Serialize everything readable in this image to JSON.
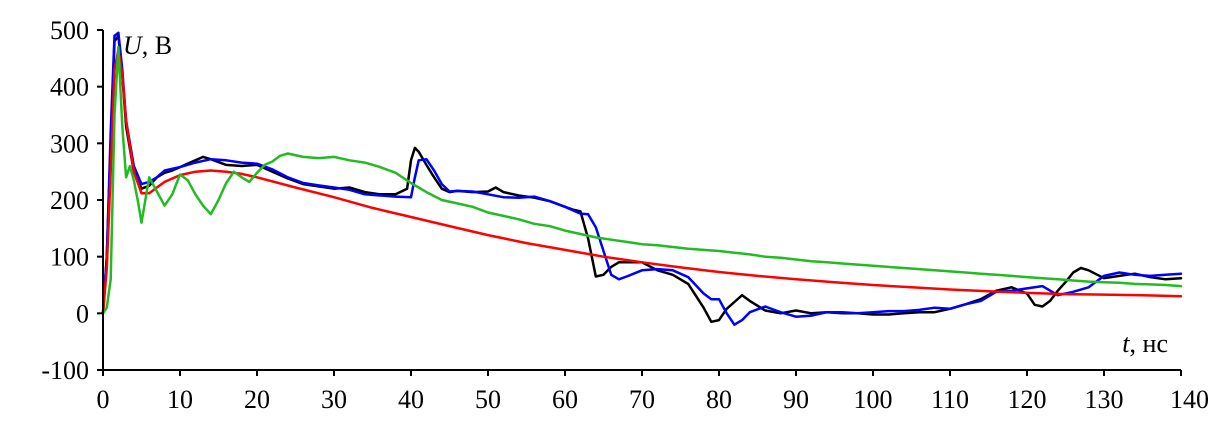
{
  "chart_data": {
    "type": "line",
    "xlabel": {
      "var": "t",
      "unit": ", нс"
    },
    "ylabel": {
      "var": "U",
      "unit": ", В"
    },
    "xlim": [
      0,
      140
    ],
    "ylim": [
      -100,
      500
    ],
    "x_ticks": [
      0,
      10,
      20,
      30,
      40,
      50,
      60,
      70,
      80,
      90,
      100,
      110,
      120,
      130,
      140
    ],
    "y_ticks": [
      -100,
      0,
      100,
      200,
      300,
      400,
      500
    ],
    "x_tick_labels": [
      "0",
      "10",
      "20",
      "30",
      "40",
      "50",
      "60",
      "70",
      "80",
      "90",
      "100",
      "110",
      "120",
      "130",
      "140"
    ],
    "y_tick_labels": [
      "-100",
      "0",
      "100",
      "200",
      "300",
      "400",
      "500"
    ],
    "grid": false,
    "series": [
      {
        "color": "#000000",
        "points": [
          [
            0,
            0
          ],
          [
            0.5,
            100
          ],
          [
            1,
            300
          ],
          [
            1.5,
            480
          ],
          [
            2,
            490
          ],
          [
            2.5,
            420
          ],
          [
            3,
            330
          ],
          [
            4,
            250
          ],
          [
            5,
            220
          ],
          [
            6,
            225
          ],
          [
            7,
            240
          ],
          [
            8,
            248
          ],
          [
            9,
            252
          ],
          [
            10,
            258
          ],
          [
            11,
            264
          ],
          [
            12,
            270
          ],
          [
            13,
            276
          ],
          [
            14,
            272
          ],
          [
            16,
            262
          ],
          [
            18,
            260
          ],
          [
            20,
            262
          ],
          [
            22,
            250
          ],
          [
            24,
            238
          ],
          [
            26,
            228
          ],
          [
            28,
            224
          ],
          [
            30,
            220
          ],
          [
            32,
            222
          ],
          [
            34,
            214
          ],
          [
            36,
            210
          ],
          [
            38,
            210
          ],
          [
            39.5,
            220
          ],
          [
            40,
            270
          ],
          [
            40.5,
            292
          ],
          [
            41,
            285
          ],
          [
            42,
            262
          ],
          [
            43,
            240
          ],
          [
            44,
            220
          ],
          [
            45,
            214
          ],
          [
            46,
            216
          ],
          [
            48,
            214
          ],
          [
            50,
            215
          ],
          [
            51,
            222
          ],
          [
            52,
            214
          ],
          [
            54,
            208
          ],
          [
            56,
            204
          ],
          [
            58,
            198
          ],
          [
            60,
            188
          ],
          [
            61,
            183
          ],
          [
            62,
            180
          ],
          [
            63,
            132
          ],
          [
            64,
            65
          ],
          [
            65,
            68
          ],
          [
            66,
            82
          ],
          [
            67,
            90
          ],
          [
            68,
            90
          ],
          [
            70,
            90
          ],
          [
            72,
            76
          ],
          [
            74,
            68
          ],
          [
            76,
            52
          ],
          [
            78,
            10
          ],
          [
            79,
            -15
          ],
          [
            80,
            -12
          ],
          [
            81,
            8
          ],
          [
            82,
            20
          ],
          [
            83,
            32
          ],
          [
            84,
            22
          ],
          [
            86,
            5
          ],
          [
            88,
            0
          ],
          [
            90,
            5
          ],
          [
            92,
            0
          ],
          [
            94,
            2
          ],
          [
            96,
            0
          ],
          [
            98,
            0
          ],
          [
            100,
            -2
          ],
          [
            102,
            -2
          ],
          [
            104,
            0
          ],
          [
            106,
            2
          ],
          [
            108,
            2
          ],
          [
            110,
            8
          ],
          [
            112,
            16
          ],
          [
            114,
            25
          ],
          [
            116,
            40
          ],
          [
            118,
            46
          ],
          [
            120,
            35
          ],
          [
            121,
            15
          ],
          [
            122,
            12
          ],
          [
            123,
            22
          ],
          [
            124,
            40
          ],
          [
            125,
            55
          ],
          [
            126,
            72
          ],
          [
            127,
            80
          ],
          [
            128,
            76
          ],
          [
            130,
            62
          ],
          [
            132,
            66
          ],
          [
            134,
            70
          ],
          [
            136,
            64
          ],
          [
            138,
            60
          ],
          [
            140,
            62
          ]
        ]
      },
      {
        "color": "#0000ff",
        "points": [
          [
            0,
            0
          ],
          [
            0.5,
            100
          ],
          [
            1,
            320
          ],
          [
            1.5,
            490
          ],
          [
            2,
            495
          ],
          [
            2.5,
            430
          ],
          [
            3,
            340
          ],
          [
            4,
            260
          ],
          [
            5,
            228
          ],
          [
            6,
            232
          ],
          [
            7,
            240
          ],
          [
            8,
            252
          ],
          [
            10,
            258
          ],
          [
            12,
            266
          ],
          [
            14,
            272
          ],
          [
            16,
            270
          ],
          [
            18,
            266
          ],
          [
            20,
            264
          ],
          [
            22,
            254
          ],
          [
            24,
            240
          ],
          [
            26,
            230
          ],
          [
            28,
            226
          ],
          [
            30,
            222
          ],
          [
            32,
            218
          ],
          [
            34,
            210
          ],
          [
            36,
            208
          ],
          [
            38,
            206
          ],
          [
            40,
            205
          ],
          [
            40.5,
            240
          ],
          [
            41,
            270
          ],
          [
            42,
            272
          ],
          [
            43,
            252
          ],
          [
            44,
            228
          ],
          [
            45,
            215
          ],
          [
            46,
            216
          ],
          [
            48,
            215
          ],
          [
            50,
            210
          ],
          [
            52,
            205
          ],
          [
            54,
            204
          ],
          [
            56,
            206
          ],
          [
            58,
            198
          ],
          [
            60,
            188
          ],
          [
            62,
            176
          ],
          [
            63,
            175
          ],
          [
            64,
            152
          ],
          [
            65,
            110
          ],
          [
            66,
            68
          ],
          [
            67,
            60
          ],
          [
            68,
            65
          ],
          [
            70,
            76
          ],
          [
            72,
            78
          ],
          [
            74,
            76
          ],
          [
            76,
            64
          ],
          [
            78,
            35
          ],
          [
            79,
            25
          ],
          [
            80,
            25
          ],
          [
            81,
            0
          ],
          [
            82,
            -20
          ],
          [
            83,
            -12
          ],
          [
            84,
            2
          ],
          [
            86,
            12
          ],
          [
            88,
            2
          ],
          [
            90,
            -6
          ],
          [
            92,
            -4
          ],
          [
            94,
            2
          ],
          [
            96,
            2
          ],
          [
            98,
            0
          ],
          [
            100,
            2
          ],
          [
            102,
            4
          ],
          [
            104,
            4
          ],
          [
            106,
            6
          ],
          [
            108,
            10
          ],
          [
            110,
            8
          ],
          [
            112,
            16
          ],
          [
            114,
            22
          ],
          [
            116,
            38
          ],
          [
            118,
            40
          ],
          [
            120,
            44
          ],
          [
            122,
            48
          ],
          [
            124,
            32
          ],
          [
            126,
            38
          ],
          [
            128,
            46
          ],
          [
            130,
            66
          ],
          [
            132,
            72
          ],
          [
            134,
            68
          ],
          [
            136,
            66
          ],
          [
            138,
            68
          ],
          [
            140,
            70
          ]
        ]
      },
      {
        "color": "#ff0000",
        "points": [
          [
            0,
            0
          ],
          [
            0.5,
            80
          ],
          [
            1,
            250
          ],
          [
            1.5,
            430
          ],
          [
            2,
            465
          ],
          [
            2.5,
            420
          ],
          [
            3,
            340
          ],
          [
            4,
            250
          ],
          [
            5,
            212
          ],
          [
            6,
            212
          ],
          [
            7,
            222
          ],
          [
            8,
            232
          ],
          [
            10,
            244
          ],
          [
            12,
            250
          ],
          [
            14,
            252
          ],
          [
            16,
            250
          ],
          [
            18,
            246
          ],
          [
            20,
            240
          ],
          [
            25,
            222
          ],
          [
            30,
            205
          ],
          [
            35,
            186
          ],
          [
            40,
            170
          ],
          [
            45,
            154
          ],
          [
            50,
            138
          ],
          [
            55,
            124
          ],
          [
            60,
            112
          ],
          [
            65,
            100
          ],
          [
            70,
            90
          ],
          [
            75,
            81
          ],
          [
            80,
            73
          ],
          [
            85,
            66
          ],
          [
            90,
            60
          ],
          [
            95,
            55
          ],
          [
            100,
            50
          ],
          [
            105,
            46
          ],
          [
            110,
            42
          ],
          [
            115,
            39
          ],
          [
            120,
            36
          ],
          [
            125,
            34
          ],
          [
            130,
            33
          ],
          [
            135,
            32
          ],
          [
            140,
            30
          ]
        ]
      },
      {
        "color": "#22bb22",
        "points": [
          [
            0,
            0
          ],
          [
            0.5,
            10
          ],
          [
            1,
            60
          ],
          [
            1.5,
            350
          ],
          [
            2,
            470
          ],
          [
            2.5,
            330
          ],
          [
            3,
            240
          ],
          [
            3.5,
            260
          ],
          [
            4,
            235
          ],
          [
            4.5,
            200
          ],
          [
            5,
            160
          ],
          [
            6,
            240
          ],
          [
            7,
            215
          ],
          [
            8,
            190
          ],
          [
            9,
            210
          ],
          [
            10,
            245
          ],
          [
            11,
            235
          ],
          [
            12,
            210
          ],
          [
            13,
            190
          ],
          [
            14,
            175
          ],
          [
            15,
            200
          ],
          [
            16,
            230
          ],
          [
            17,
            250
          ],
          [
            18,
            240
          ],
          [
            19,
            232
          ],
          [
            20,
            248
          ],
          [
            21,
            262
          ],
          [
            22,
            268
          ],
          [
            23,
            278
          ],
          [
            24,
            282
          ],
          [
            26,
            276
          ],
          [
            28,
            274
          ],
          [
            30,
            276
          ],
          [
            32,
            270
          ],
          [
            34,
            266
          ],
          [
            36,
            258
          ],
          [
            38,
            248
          ],
          [
            40,
            230
          ],
          [
            42,
            214
          ],
          [
            44,
            200
          ],
          [
            46,
            194
          ],
          [
            48,
            188
          ],
          [
            50,
            178
          ],
          [
            52,
            172
          ],
          [
            54,
            166
          ],
          [
            56,
            158
          ],
          [
            58,
            154
          ],
          [
            60,
            146
          ],
          [
            62,
            140
          ],
          [
            64,
            134
          ],
          [
            66,
            130
          ],
          [
            68,
            126
          ],
          [
            70,
            122
          ],
          [
            72,
            120
          ],
          [
            74,
            117
          ],
          [
            76,
            114
          ],
          [
            78,
            112
          ],
          [
            80,
            110
          ],
          [
            82,
            107
          ],
          [
            84,
            104
          ],
          [
            86,
            100
          ],
          [
            88,
            98
          ],
          [
            90,
            95
          ],
          [
            92,
            92
          ],
          [
            94,
            90
          ],
          [
            96,
            88
          ],
          [
            98,
            86
          ],
          [
            100,
            84
          ],
          [
            102,
            82
          ],
          [
            104,
            80
          ],
          [
            106,
            78
          ],
          [
            108,
            76
          ],
          [
            110,
            74
          ],
          [
            112,
            72
          ],
          [
            114,
            70
          ],
          [
            116,
            68
          ],
          [
            118,
            66
          ],
          [
            120,
            64
          ],
          [
            122,
            62
          ],
          [
            124,
            60
          ],
          [
            126,
            58
          ],
          [
            128,
            56
          ],
          [
            130,
            55
          ],
          [
            132,
            54
          ],
          [
            134,
            52
          ],
          [
            136,
            51
          ],
          [
            138,
            50
          ],
          [
            140,
            48
          ]
        ]
      }
    ]
  }
}
